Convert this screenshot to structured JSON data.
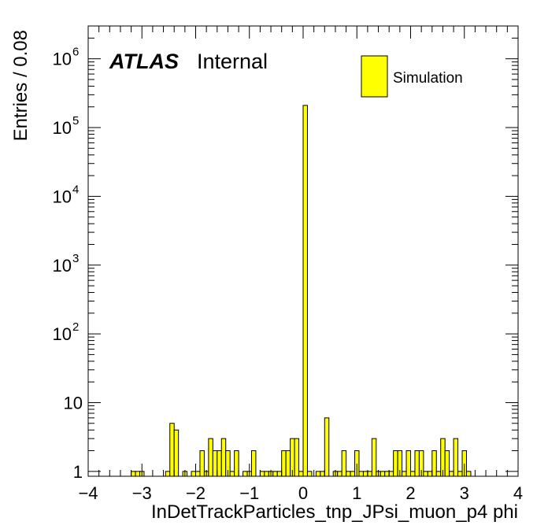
{
  "chart_data": {
    "type": "bar",
    "xlabel": "InDetTrackParticles_tnp_JPsi_muon_p4 phi",
    "ylabel": "Entries / 0.08",
    "yscale": "log",
    "xlim": [
      -4,
      4
    ],
    "ylim": [
      0.85,
      3000000
    ],
    "bin_width": 0.08,
    "x_tick_labels": [
      "−4",
      "−3",
      "−2",
      "−1",
      "0",
      "1",
      "2",
      "3",
      "4"
    ],
    "y_tick_labels": [
      {
        "value": 1,
        "base": "1",
        "exp": ""
      },
      {
        "value": 10,
        "base": "10",
        "exp": ""
      },
      {
        "value": 100,
        "base": "10",
        "exp": "2"
      },
      {
        "value": 1000,
        "base": "10",
        "exp": "3"
      },
      {
        "value": 10000,
        "base": "10",
        "exp": "4"
      },
      {
        "value": 100000,
        "base": "10",
        "exp": "5"
      },
      {
        "value": 1000000,
        "base": "10",
        "exp": "6"
      }
    ],
    "atlas_label": "ATLAS",
    "atlas_status": "Internal",
    "series": [
      {
        "name": "Simulation",
        "color": "#ffff00",
        "edge_color": "#000000",
        "bins": [
          {
            "x": -3.2,
            "y": 1
          },
          {
            "x": -3.12,
            "y": 1
          },
          {
            "x": -3.04,
            "y": 1
          },
          {
            "x": -2.56,
            "y": 1
          },
          {
            "x": -2.48,
            "y": 5
          },
          {
            "x": -2.4,
            "y": 4
          },
          {
            "x": -2.24,
            "y": 1
          },
          {
            "x": -2.08,
            "y": 1
          },
          {
            "x": -2.0,
            "y": 1
          },
          {
            "x": -1.92,
            "y": 2
          },
          {
            "x": -1.84,
            "y": 1
          },
          {
            "x": -1.76,
            "y": 3
          },
          {
            "x": -1.68,
            "y": 2
          },
          {
            "x": -1.6,
            "y": 2
          },
          {
            "x": -1.52,
            "y": 3
          },
          {
            "x": -1.44,
            "y": 2
          },
          {
            "x": -1.36,
            "y": 1
          },
          {
            "x": -1.28,
            "y": 2
          },
          {
            "x": -1.12,
            "y": 1
          },
          {
            "x": -1.04,
            "y": 1
          },
          {
            "x": -0.96,
            "y": 2
          },
          {
            "x": -0.8,
            "y": 1
          },
          {
            "x": -0.72,
            "y": 1
          },
          {
            "x": -0.64,
            "y": 1
          },
          {
            "x": -0.56,
            "y": 1
          },
          {
            "x": -0.48,
            "y": 1
          },
          {
            "x": -0.4,
            "y": 2
          },
          {
            "x": -0.32,
            "y": 2
          },
          {
            "x": -0.24,
            "y": 3
          },
          {
            "x": -0.16,
            "y": 3
          },
          {
            "x": -0.08,
            "y": 1
          },
          {
            "x": 0.0,
            "y": 210000
          },
          {
            "x": 0.08,
            "y": 1
          },
          {
            "x": 0.24,
            "y": 1
          },
          {
            "x": 0.32,
            "y": 1
          },
          {
            "x": 0.4,
            "y": 6
          },
          {
            "x": 0.56,
            "y": 1
          },
          {
            "x": 0.64,
            "y": 1
          },
          {
            "x": 0.72,
            "y": 2
          },
          {
            "x": 0.8,
            "y": 1
          },
          {
            "x": 0.88,
            "y": 1
          },
          {
            "x": 0.96,
            "y": 2
          },
          {
            "x": 1.04,
            "y": 1
          },
          {
            "x": 1.12,
            "y": 1
          },
          {
            "x": 1.2,
            "y": 1
          },
          {
            "x": 1.28,
            "y": 3
          },
          {
            "x": 1.36,
            "y": 1
          },
          {
            "x": 1.44,
            "y": 1
          },
          {
            "x": 1.52,
            "y": 1
          },
          {
            "x": 1.6,
            "y": 1
          },
          {
            "x": 1.68,
            "y": 2
          },
          {
            "x": 1.76,
            "y": 2
          },
          {
            "x": 1.84,
            "y": 1
          },
          {
            "x": 1.92,
            "y": 2
          },
          {
            "x": 2.0,
            "y": 1
          },
          {
            "x": 2.08,
            "y": 2
          },
          {
            "x": 2.16,
            "y": 2
          },
          {
            "x": 2.24,
            "y": 1
          },
          {
            "x": 2.32,
            "y": 1
          },
          {
            "x": 2.4,
            "y": 2
          },
          {
            "x": 2.48,
            "y": 1
          },
          {
            "x": 2.56,
            "y": 3
          },
          {
            "x": 2.64,
            "y": 2
          },
          {
            "x": 2.72,
            "y": 1
          },
          {
            "x": 2.8,
            "y": 3
          },
          {
            "x": 2.88,
            "y": 1
          },
          {
            "x": 2.96,
            "y": 2
          },
          {
            "x": 3.04,
            "y": 1
          }
        ]
      }
    ]
  }
}
